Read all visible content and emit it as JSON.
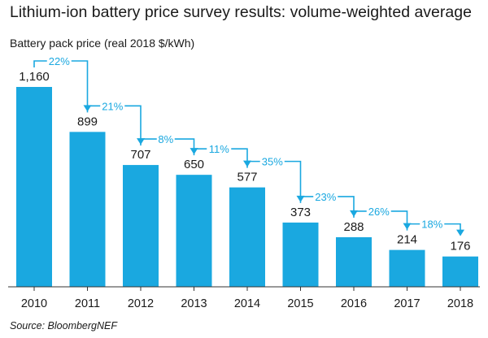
{
  "colors": {
    "bar": "#1aa8e0",
    "connector": "#1aa8e0",
    "text": "#1a1a1a",
    "axis": "#333333"
  },
  "chart_data": {
    "type": "bar",
    "title": "Lithium-ion battery price survey results: volume-weighted average",
    "ylabel": "Battery pack price (real 2018 $/kWh)",
    "xlabel": "",
    "categories": [
      "2010",
      "2011",
      "2012",
      "2013",
      "2014",
      "2015",
      "2016",
      "2017",
      "2018"
    ],
    "values": [
      1160,
      899,
      707,
      650,
      577,
      373,
      288,
      214,
      176
    ],
    "value_labels": [
      "1,160",
      "899",
      "707",
      "650",
      "577",
      "373",
      "288",
      "214",
      "176"
    ],
    "ylim": [
      0,
      1160
    ],
    "grid": false,
    "legend": "none",
    "annotations": [
      {
        "from": "2010",
        "to": "2011",
        "text": "22%"
      },
      {
        "from": "2011",
        "to": "2012",
        "text": "21%"
      },
      {
        "from": "2012",
        "to": "2013",
        "text": "8%"
      },
      {
        "from": "2013",
        "to": "2014",
        "text": "11%"
      },
      {
        "from": "2014",
        "to": "2015",
        "text": "35%"
      },
      {
        "from": "2015",
        "to": "2016",
        "text": "23%"
      },
      {
        "from": "2016",
        "to": "2017",
        "text": "26%"
      },
      {
        "from": "2017",
        "to": "2018",
        "text": "18%"
      }
    ],
    "source": "Source: BloombergNEF"
  }
}
